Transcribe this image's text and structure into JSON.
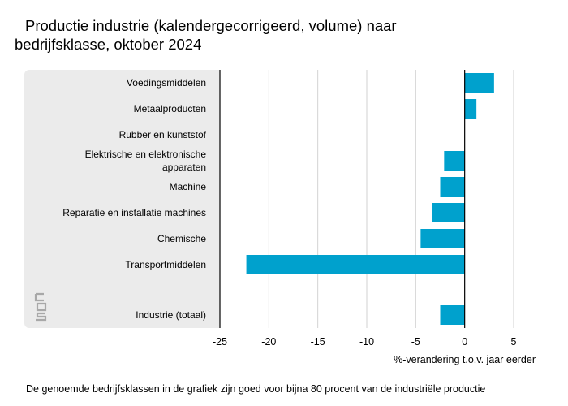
{
  "title_line1": "Productie industrie (kalendergecorrigeerd, volume) naar",
  "title_line2": "bedrijfsklasse, oktober 2024",
  "footnote": "De genoemde bedrijfsklassen in de grafiek zijn goed voor bijna 80 procent van de industriële productie",
  "logo_icon": "cbs-logo-icon",
  "colors": {
    "bar": "#00a1cd",
    "panel": "#ebebeb",
    "grid": "#d2d2d2",
    "axis": "#000000"
  },
  "chart_data": {
    "type": "bar",
    "orientation": "horizontal",
    "categories": [
      [
        "Voedingsmiddelen"
      ],
      [
        "Metaalproducten"
      ],
      [
        "Rubber en kunststof"
      ],
      [
        "Elektrische en elektronische",
        "apparaten"
      ],
      [
        "Machine"
      ],
      [
        "Reparatie en installatie machines"
      ],
      [
        "Chemische"
      ],
      [
        "Transportmiddelen"
      ],
      [
        "Industrie (totaal)"
      ]
    ],
    "values": [
      3.0,
      1.2,
      0.0,
      -2.1,
      -2.5,
      -3.3,
      -4.5,
      -22.3,
      -2.5
    ],
    "xlabel": "%-verandering t.o.v. jaar eerder",
    "xlim": [
      -25,
      5
    ],
    "xticks": [
      -25,
      -20,
      -15,
      -10,
      -5,
      0,
      5
    ],
    "grid": true,
    "legend": "none"
  }
}
